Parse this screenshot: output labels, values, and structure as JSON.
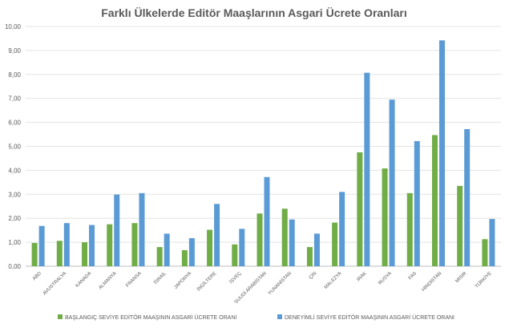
{
  "chart_data": {
    "type": "bar",
    "title": "Farklı Ülkelerde Editör Maaşlarının Asgari Ücrete Oranları",
    "xlabel": "",
    "ylabel": "",
    "ylim": [
      0,
      10
    ],
    "yticks": [
      "0,00",
      "1,00",
      "2,00",
      "3,00",
      "4,00",
      "5,00",
      "6,00",
      "7,00",
      "8,00",
      "9,00",
      "10,00"
    ],
    "grid": true,
    "legend_position": "bottom",
    "categories": [
      "ABD",
      "AVUSTRALYA",
      "KANADA",
      "ALMANYA",
      "FRANSA",
      "İSRAİL",
      "JAPONYA",
      "İNGİLTERE",
      "İSVEÇ",
      "SUUDİ ARABİSTAN",
      "YUNANİSTAN",
      "ÇİN",
      "MALEZYA",
      "IRAK",
      "RUSYA",
      "FAS",
      "HİNDİSTAN",
      "MISIR",
      "TÜRKİYE"
    ],
    "series": [
      {
        "name": "BAŞLANGIÇ SEVİYE EDİTÖR MAAŞININ ASGARİ ÜCRETE ORANI",
        "color": "#70ad47",
        "values": [
          0.97,
          1.06,
          1.0,
          1.75,
          1.8,
          0.8,
          0.67,
          1.52,
          0.91,
          2.2,
          2.4,
          0.8,
          1.82,
          4.75,
          4.08,
          3.05,
          5.47,
          3.35,
          1.13
        ]
      },
      {
        "name": "DENEYİMLİ SEVİYE EDİTÖR MAAŞININ ASGARİ ÜCRETE ORANI",
        "color": "#5b9bd5",
        "values": [
          1.68,
          1.8,
          1.72,
          2.99,
          3.05,
          1.36,
          1.17,
          2.6,
          1.56,
          3.72,
          1.95,
          1.36,
          3.1,
          8.07,
          6.95,
          5.22,
          9.42,
          5.72,
          1.97
        ]
      }
    ]
  }
}
